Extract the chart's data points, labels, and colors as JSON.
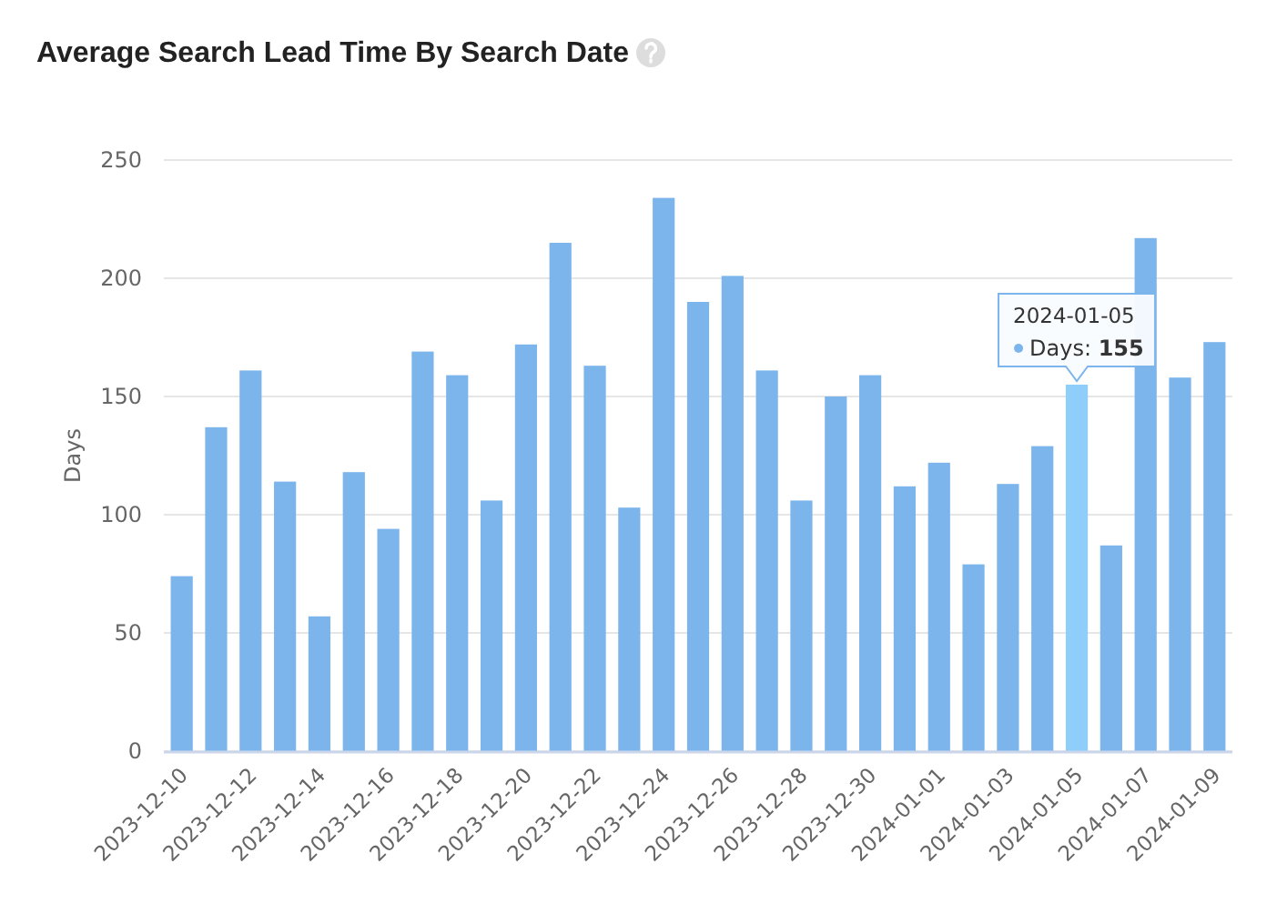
{
  "chart_data": {
    "type": "bar",
    "title": "Average Search Lead Time By Search Date",
    "ylabel": "Days",
    "categories": [
      "2023-12-10",
      null,
      "2023-12-12",
      null,
      "2023-12-14",
      null,
      "2023-12-16",
      null,
      "2023-12-18",
      null,
      "2023-12-20",
      null,
      "2023-12-22",
      null,
      "2023-12-24",
      null,
      "2023-12-26",
      null,
      "2023-12-28",
      null,
      "2023-12-30",
      null,
      "2024-01-01",
      null,
      "2024-01-03",
      null,
      "2024-01-05",
      null,
      "2024-01-07",
      null,
      "2024-01-09"
    ],
    "values": [
      74,
      137,
      161,
      114,
      57,
      118,
      94,
      169,
      159,
      106,
      172,
      215,
      163,
      103,
      234,
      190,
      201,
      161,
      106,
      150,
      159,
      112,
      122,
      79,
      113,
      129,
      155,
      87,
      217,
      158,
      173
    ],
    "colors": [
      "#7cb5ec",
      "#7cb5ec",
      "#7cb5ec",
      "#7cb5ec",
      "#7cb5ec",
      "#7cb5ec",
      "#7cb5ec",
      "#7cb5ec",
      "#7cb5ec",
      "#7cb5ec",
      "#7cb5ec",
      "#7cb5ec",
      "#7cb5ec",
      "#7cb5ec",
      "#7cb5ec",
      "#7cb5ec",
      "#7cb5ec",
      "#7cb5ec",
      "#7cb5ec",
      "#7cb5ec",
      "#7cb5ec",
      "#7cb5ec",
      "#7cb5ec",
      "#7cb5ec",
      "#7cb5ec",
      "#7cb5ec",
      "#8fcdfa",
      "#7cb5ec",
      "#7cb5ec",
      "#7cb5ec",
      "#7cb5ec"
    ],
    "ylim": [
      0,
      250
    ],
    "yticks": [
      0,
      50,
      100,
      150,
      200,
      250
    ],
    "grid": "y",
    "annotations": [
      {
        "text": "2024-01-05\nDays: 155",
        "x": "2024-01-05",
        "y": 155
      }
    ]
  }
}
